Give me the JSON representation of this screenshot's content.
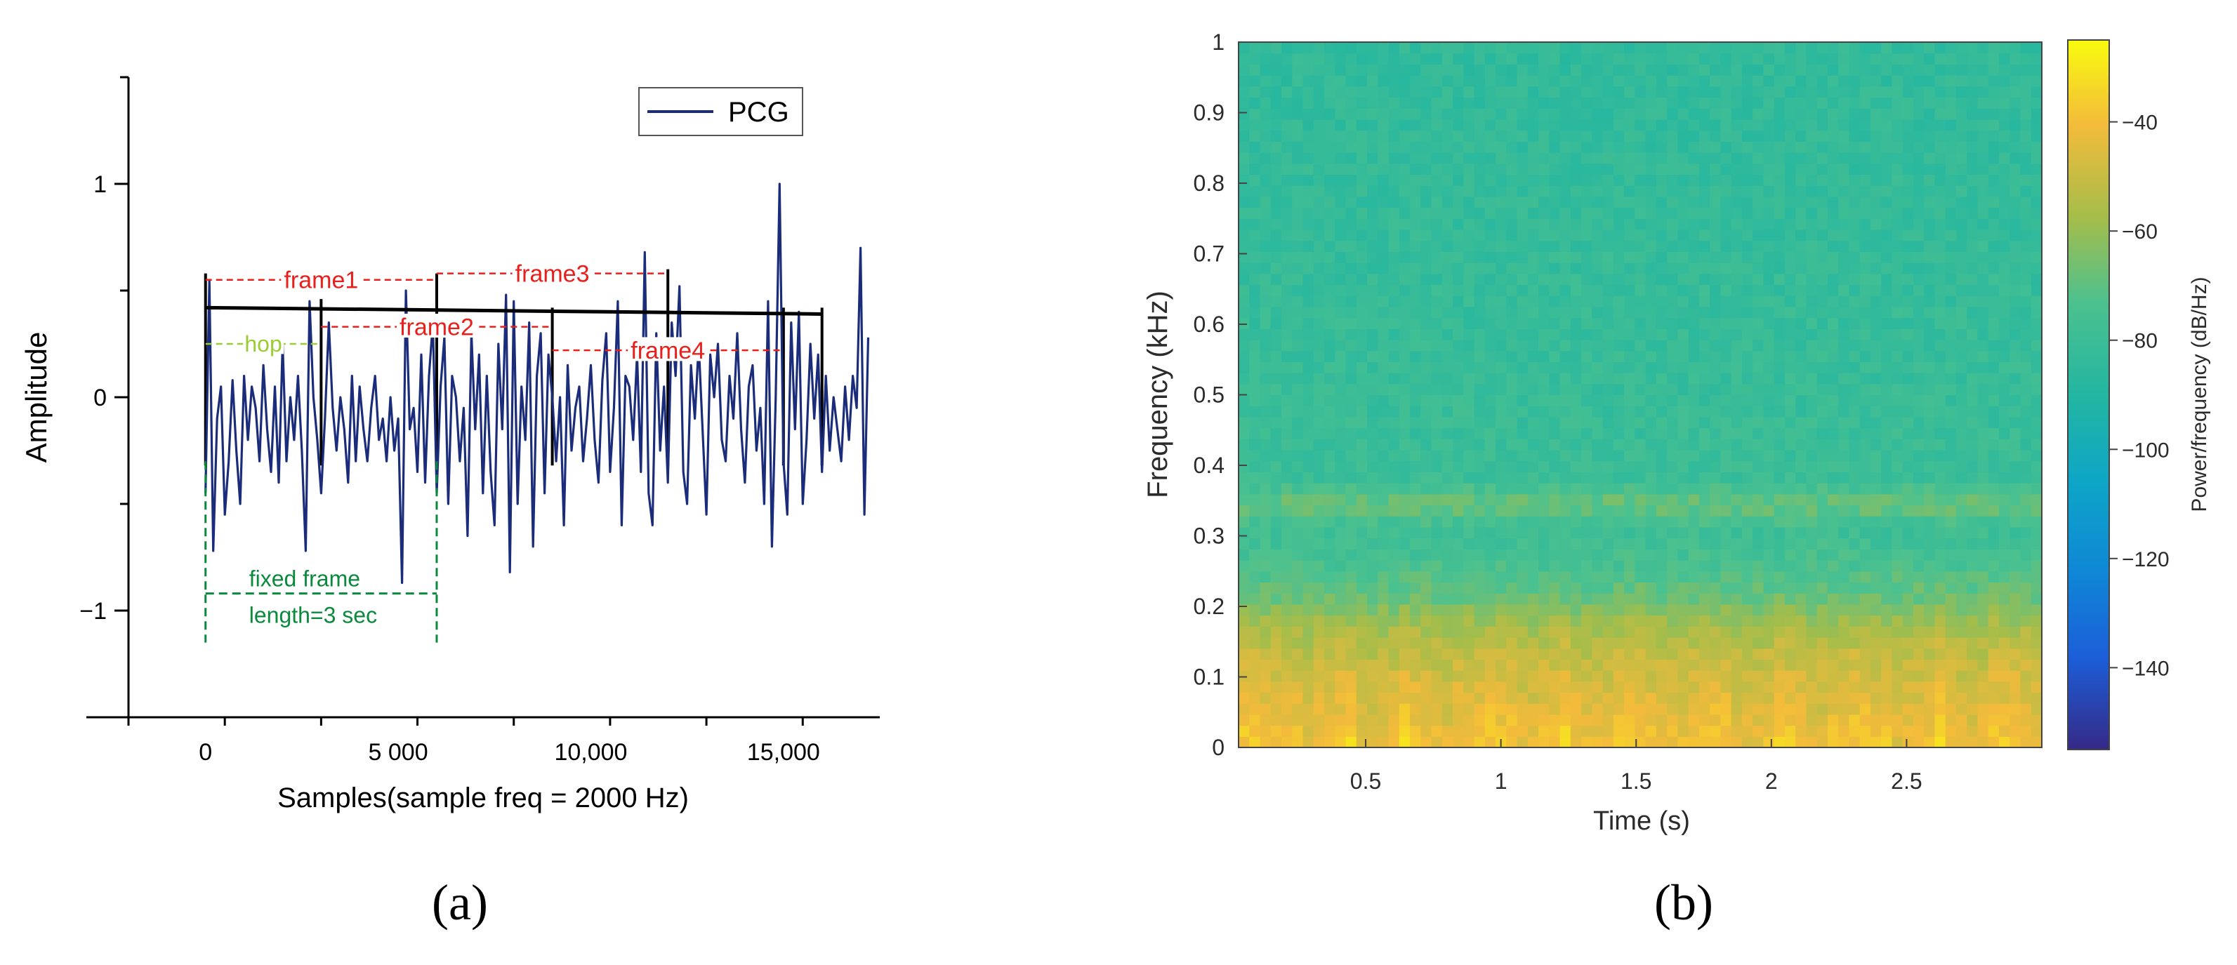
{
  "figure": {
    "panel_a_label": "(a)",
    "panel_b_label": "(b)"
  },
  "chart_data": [
    {
      "type": "line",
      "panel": "a",
      "xlabel": "Samples(sample freq = 2000 Hz)",
      "ylabel": "Amplitude",
      "xlim": [
        -2000,
        17500
      ],
      "ylim": [
        -1.5,
        1.5
      ],
      "x_ticks": [
        0,
        5000,
        10000,
        15000
      ],
      "x_tick_labels": [
        "0",
        "5 000",
        "10,000",
        "15,000"
      ],
      "y_ticks": [
        -1,
        0,
        1
      ],
      "y_tick_labels": [
        "−1",
        "0",
        "1"
      ],
      "legend": {
        "position": "top-right",
        "entries": [
          "PCG"
        ]
      },
      "series": [
        {
          "name": "PCG",
          "color": "#1b2d7a",
          "sample_step": 100,
          "values": [
            -0.45,
            0.55,
            -0.72,
            -0.1,
            0.05,
            -0.55,
            -0.3,
            0.08,
            -0.25,
            -0.5,
            0.1,
            -0.2,
            0.05,
            -0.05,
            -0.3,
            0.15,
            -0.15,
            -0.35,
            0.05,
            -0.4,
            0.25,
            -0.3,
            0.0,
            -0.2,
            0.1,
            -0.25,
            -0.72,
            0.45,
            0.0,
            -0.2,
            -0.45,
            -0.1,
            0.35,
            -0.05,
            -0.25,
            0.0,
            -0.15,
            -0.4,
            0.1,
            -0.3,
            0.05,
            -0.15,
            -0.3,
            -0.05,
            0.1,
            -0.2,
            -0.1,
            -0.3,
            0.0,
            -0.25,
            -0.1,
            -0.87,
            0.5,
            -0.15,
            -0.05,
            -0.35,
            0.2,
            -0.4,
            0.1,
            0.35,
            -0.45,
            0.05,
            0.28,
            -0.5,
            0.1,
            0.0,
            -0.3,
            -0.05,
            -0.65,
            0.3,
            -0.15,
            0.2,
            -0.45,
            0.1,
            -0.35,
            -0.6,
            0.25,
            -0.15,
            0.48,
            -0.82,
            0.45,
            -0.5,
            0.05,
            -0.2,
            0.35,
            -0.7,
            0.1,
            0.3,
            -0.45,
            0.2,
            0.0,
            -0.3,
            0.0,
            -0.6,
            0.15,
            -0.25,
            -0.05,
            0.05,
            -0.3,
            -0.1,
            0.15,
            -0.2,
            -0.4,
            0.08,
            0.3,
            -0.35,
            -0.05,
            0.45,
            -0.6,
            0.1,
            0.05,
            -0.2,
            0.2,
            -0.35,
            0.68,
            -0.45,
            -0.6,
            0.3,
            -0.25,
            0.05,
            -0.4,
            0.35,
            0.1,
            0.52,
            -0.35,
            -0.5,
            0.15,
            -0.1,
            0.25,
            -0.15,
            -0.55,
            0.2,
            0.0,
            0.25,
            -0.2,
            -0.3,
            0.1,
            -0.1,
            0.3,
            -0.15,
            -0.4,
            0.05,
            0.15,
            -0.25,
            -0.05,
            -0.5,
            0.45,
            -0.7,
            0.0,
            1.0,
            -0.3,
            -0.55,
            0.35,
            -0.15,
            0.4,
            -0.5,
            -0.2,
            0.25,
            -0.1,
            0.2,
            -0.35,
            0.1,
            -0.25,
            0.0,
            -0.15,
            -0.3,
            0.05,
            -0.2,
            0.1,
            -0.05,
            0.7,
            -0.55,
            0.28
          ]
        }
      ],
      "trend_line": {
        "from": [
          0,
          0.42
        ],
        "to": [
          16000,
          0.39
        ],
        "color": "#000000"
      },
      "frame_markers": [
        {
          "x": 0,
          "top": 0.58,
          "bottom": -0.32
        },
        {
          "x": 3000,
          "top": 0.46,
          "bottom": -0.32
        },
        {
          "x": 6000,
          "top": 0.58,
          "bottom": -0.32
        },
        {
          "x": 9000,
          "top": 0.42,
          "bottom": -0.32
        },
        {
          "x": 12000,
          "top": 0.6,
          "bottom": -0.32
        },
        {
          "x": 15000,
          "top": 0.42,
          "bottom": -0.32
        },
        {
          "x": 16000,
          "top": 0.42,
          "bottom": -0.32
        }
      ],
      "annotations": {
        "frames": [
          {
            "label": "frame1",
            "x_start": 0,
            "x_end": 6000,
            "y": 0.55,
            "color": "#e8201c"
          },
          {
            "label": "frame2",
            "x_start": 3000,
            "x_end": 9000,
            "y": 0.33,
            "color": "#e8201c"
          },
          {
            "label": "frame3",
            "x_start": 6000,
            "x_end": 12000,
            "y": 0.58,
            "color": "#e8201c"
          },
          {
            "label": "frame4",
            "x_start": 9000,
            "x_end": 15000,
            "y": 0.22,
            "color": "#e8201c"
          }
        ],
        "hop": {
          "label": "hop",
          "x_start": 0,
          "x_end": 3000,
          "y": 0.25,
          "color": "#9acd32"
        },
        "fixed_frame": {
          "lines": [
            "fixed  frame",
            "length=3 sec"
          ],
          "x_start": 0,
          "x_end": 6000,
          "top": -0.3,
          "bottom": -1.15,
          "y_arrow": -0.92,
          "color": "#0b8a3e"
        }
      }
    },
    {
      "type": "heatmap",
      "panel": "b",
      "xlabel": "Time (s)",
      "ylabel": "Frequency (kHz)",
      "xlim": [
        0.03,
        3.0
      ],
      "ylim": [
        0,
        1
      ],
      "x_ticks": [
        0.5,
        1,
        1.5,
        2,
        2.5
      ],
      "x_tick_labels": [
        "0.5",
        "1",
        "1.5",
        "2",
        "2.5"
      ],
      "y_ticks": [
        0,
        0.1,
        0.2,
        0.3,
        0.4,
        0.5,
        0.6,
        0.7,
        0.8,
        0.9,
        1
      ],
      "y_tick_labels": [
        "0",
        "0.1",
        "0.2",
        "0.3",
        "0.4",
        "0.5",
        "0.6",
        "0.7",
        "0.8",
        "0.9",
        "1"
      ],
      "colorbar": {
        "label": "Power/frequency (dB/Hz)",
        "range": [
          -155,
          -25
        ],
        "ticks": [
          -40,
          -60,
          -80,
          -100,
          -120,
          -140
        ],
        "tick_labels": [
          "−40",
          "−60",
          "−80",
          "−100",
          "−120",
          "−140"
        ],
        "colormap": "parula"
      },
      "grid": {
        "time_bins": 75,
        "freq_bins": 64
      },
      "power_profile": [
        {
          "freq": 0.0,
          "db": -40
        },
        {
          "freq": 0.05,
          "db": -44
        },
        {
          "freq": 0.12,
          "db": -50
        },
        {
          "freq": 0.17,
          "db": -57
        },
        {
          "freq": 0.21,
          "db": -67
        },
        {
          "freq": 0.26,
          "db": -75
        },
        {
          "freq": 0.31,
          "db": -79
        },
        {
          "freq": 0.345,
          "db": -67
        },
        {
          "freq": 0.38,
          "db": -80
        },
        {
          "freq": 0.6,
          "db": -82
        },
        {
          "freq": 1.0,
          "db": -84
        }
      ]
    }
  ]
}
